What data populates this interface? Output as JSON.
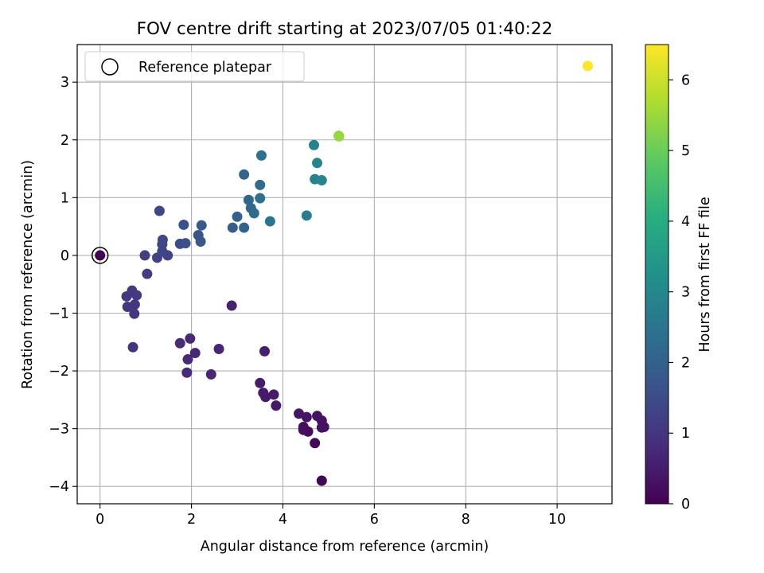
{
  "chart_data": {
    "type": "scatter",
    "title": "FOV centre drift starting at 2023/07/05 01:40:22",
    "xlabel": "Angular distance from reference (arcmin)",
    "ylabel": "Rotation from reference (arcmin)",
    "xlim": [
      -0.5,
      11.2
    ],
    "ylim": [
      -4.3,
      3.65
    ],
    "xticks": [
      0,
      2,
      4,
      6,
      8,
      10
    ],
    "yticks": [
      -4,
      -3,
      -2,
      -1,
      0,
      1,
      2,
      3
    ],
    "grid": true,
    "legend": {
      "placement": "top-left",
      "entries": [
        "Reference platepar"
      ]
    },
    "reference_point": {
      "x": 0,
      "y": 0
    },
    "colorbar": {
      "label": "Hours from first FF file",
      "range": [
        0,
        6.5
      ],
      "ticks": [
        0,
        1,
        2,
        3,
        4,
        5,
        6
      ],
      "colormap": "viridis"
    },
    "points": [
      {
        "x": 0.0,
        "y": 0.0,
        "c": 0.0
      },
      {
        "x": 4.85,
        "y": -3.9,
        "c": 0.1
      },
      {
        "x": 4.7,
        "y": -3.25,
        "c": 0.15
      },
      {
        "x": 4.55,
        "y": -3.05,
        "c": 0.2
      },
      {
        "x": 4.45,
        "y": -3.02,
        "c": 0.22
      },
      {
        "x": 4.45,
        "y": -2.97,
        "c": 0.25
      },
      {
        "x": 4.9,
        "y": -2.97,
        "c": 0.28
      },
      {
        "x": 4.85,
        "y": -2.98,
        "c": 0.3
      },
      {
        "x": 4.85,
        "y": -2.86,
        "c": 0.32
      },
      {
        "x": 4.75,
        "y": -2.78,
        "c": 0.34
      },
      {
        "x": 4.52,
        "y": -2.8,
        "c": 0.36
      },
      {
        "x": 4.35,
        "y": -2.74,
        "c": 0.38
      },
      {
        "x": 3.85,
        "y": -2.6,
        "c": 0.42
      },
      {
        "x": 3.62,
        "y": -2.45,
        "c": 0.44
      },
      {
        "x": 3.57,
        "y": -2.38,
        "c": 0.46
      },
      {
        "x": 3.8,
        "y": -2.41,
        "c": 0.48
      },
      {
        "x": 3.5,
        "y": -2.21,
        "c": 0.5
      },
      {
        "x": 3.6,
        "y": -1.66,
        "c": 0.55
      },
      {
        "x": 2.88,
        "y": -0.87,
        "c": 0.62
      },
      {
        "x": 2.6,
        "y": -1.62,
        "c": 0.68
      },
      {
        "x": 2.43,
        "y": -2.06,
        "c": 0.7
      },
      {
        "x": 2.08,
        "y": -1.69,
        "c": 0.72
      },
      {
        "x": 1.97,
        "y": -1.44,
        "c": 0.74
      },
      {
        "x": 1.92,
        "y": -1.8,
        "c": 0.76
      },
      {
        "x": 1.9,
        "y": -2.03,
        "c": 0.78
      },
      {
        "x": 1.75,
        "y": -1.52,
        "c": 0.8
      },
      {
        "x": 0.72,
        "y": -1.59,
        "c": 0.95
      },
      {
        "x": 0.75,
        "y": -1.01,
        "c": 1.0
      },
      {
        "x": 0.76,
        "y": -0.85,
        "c": 1.02
      },
      {
        "x": 0.6,
        "y": -0.89,
        "c": 1.05
      },
      {
        "x": 0.58,
        "y": -0.71,
        "c": 1.07
      },
      {
        "x": 0.7,
        "y": -0.61,
        "c": 1.09
      },
      {
        "x": 0.8,
        "y": -0.69,
        "c": 1.1
      },
      {
        "x": 1.03,
        "y": -0.32,
        "c": 1.15
      },
      {
        "x": 0.98,
        "y": 0.0,
        "c": 1.2
      },
      {
        "x": 1.25,
        "y": -0.04,
        "c": 1.25
      },
      {
        "x": 1.48,
        "y": 0.0,
        "c": 1.3
      },
      {
        "x": 1.36,
        "y": 0.07,
        "c": 1.33
      },
      {
        "x": 1.36,
        "y": 0.19,
        "c": 1.36
      },
      {
        "x": 1.37,
        "y": 0.27,
        "c": 1.38
      },
      {
        "x": 1.3,
        "y": 0.77,
        "c": 1.4
      },
      {
        "x": 1.75,
        "y": 0.2,
        "c": 1.5
      },
      {
        "x": 1.87,
        "y": 0.21,
        "c": 1.55
      },
      {
        "x": 1.83,
        "y": 0.53,
        "c": 1.6
      },
      {
        "x": 2.15,
        "y": 0.35,
        "c": 1.7
      },
      {
        "x": 2.2,
        "y": 0.24,
        "c": 1.75
      },
      {
        "x": 2.22,
        "y": 0.52,
        "c": 1.8
      },
      {
        "x": 2.9,
        "y": 0.48,
        "c": 1.9
      },
      {
        "x": 3.0,
        "y": 0.67,
        "c": 2.0
      },
      {
        "x": 3.15,
        "y": 0.48,
        "c": 2.05
      },
      {
        "x": 3.15,
        "y": 1.4,
        "c": 2.1
      },
      {
        "x": 3.25,
        "y": 0.96,
        "c": 2.15
      },
      {
        "x": 3.3,
        "y": 0.82,
        "c": 2.2
      },
      {
        "x": 3.37,
        "y": 0.73,
        "c": 2.25
      },
      {
        "x": 3.5,
        "y": 1.22,
        "c": 2.3
      },
      {
        "x": 3.5,
        "y": 0.99,
        "c": 2.35
      },
      {
        "x": 3.53,
        "y": 1.73,
        "c": 2.4
      },
      {
        "x": 3.72,
        "y": 0.59,
        "c": 2.5
      },
      {
        "x": 4.52,
        "y": 0.69,
        "c": 2.7
      },
      {
        "x": 4.68,
        "y": 1.91,
        "c": 2.8
      },
      {
        "x": 4.7,
        "y": 1.32,
        "c": 2.85
      },
      {
        "x": 4.75,
        "y": 1.6,
        "c": 2.9
      },
      {
        "x": 4.85,
        "y": 1.3,
        "c": 2.95
      },
      {
        "x": 5.22,
        "y": 2.07,
        "c": 5.4
      },
      {
        "x": 5.23,
        "y": 2.06,
        "c": 5.45
      },
      {
        "x": 10.67,
        "y": 3.28,
        "c": 6.5
      }
    ]
  }
}
